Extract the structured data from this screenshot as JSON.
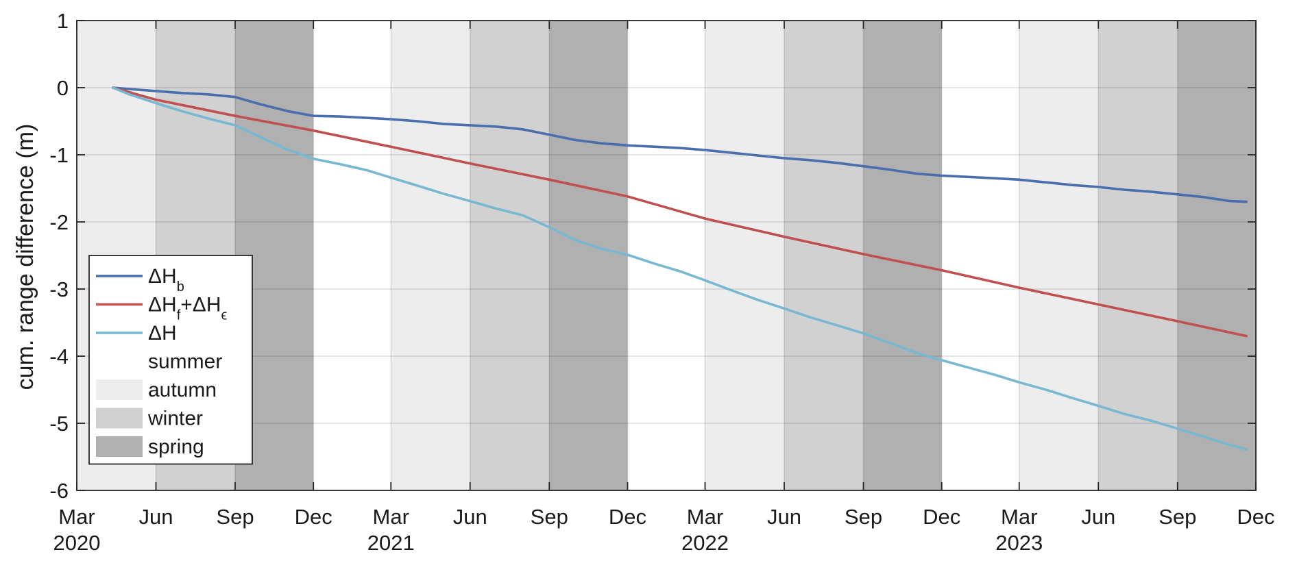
{
  "chart_data": {
    "type": "line",
    "ylabel": "cum. range difference (m)",
    "ylim": [
      -6,
      1
    ],
    "yticks": [
      1,
      0,
      -1,
      -2,
      -3,
      -4,
      -5,
      -6
    ],
    "xlim": [
      "2020-03-01",
      "2023-12-01"
    ],
    "xticks": [
      {
        "date": "2020-03-01",
        "label": "Mar",
        "year": "2020"
      },
      {
        "date": "2020-06-01",
        "label": "Jun",
        "year": ""
      },
      {
        "date": "2020-09-01",
        "label": "Sep",
        "year": ""
      },
      {
        "date": "2020-12-01",
        "label": "Dec",
        "year": ""
      },
      {
        "date": "2021-03-01",
        "label": "Mar",
        "year": "2021"
      },
      {
        "date": "2021-06-01",
        "label": "Jun",
        "year": ""
      },
      {
        "date": "2021-09-01",
        "label": "Sep",
        "year": ""
      },
      {
        "date": "2021-12-01",
        "label": "Dec",
        "year": ""
      },
      {
        "date": "2022-03-01",
        "label": "Mar",
        "year": "2022"
      },
      {
        "date": "2022-06-01",
        "label": "Jun",
        "year": ""
      },
      {
        "date": "2022-09-01",
        "label": "Sep",
        "year": ""
      },
      {
        "date": "2022-12-01",
        "label": "Dec",
        "year": ""
      },
      {
        "date": "2023-03-01",
        "label": "Mar",
        "year": "2023"
      },
      {
        "date": "2023-06-01",
        "label": "Jun",
        "year": ""
      },
      {
        "date": "2023-09-01",
        "label": "Sep",
        "year": ""
      },
      {
        "date": "2023-12-01",
        "label": "Dec",
        "year": ""
      }
    ],
    "grid": true,
    "legend_position": "bottom-left",
    "season_colors": {
      "summer": "#ffffff",
      "autumn": "#ededed",
      "winter": "#d1d1d1",
      "spring": "#b0b0b0"
    },
    "season_bands": [
      {
        "season": "autumn",
        "start": "2020-03-01",
        "end": "2020-06-01"
      },
      {
        "season": "winter",
        "start": "2020-06-01",
        "end": "2020-09-01"
      },
      {
        "season": "spring",
        "start": "2020-09-01",
        "end": "2020-12-01"
      },
      {
        "season": "summer",
        "start": "2020-12-01",
        "end": "2021-03-01"
      },
      {
        "season": "autumn",
        "start": "2021-03-01",
        "end": "2021-06-01"
      },
      {
        "season": "winter",
        "start": "2021-06-01",
        "end": "2021-09-01"
      },
      {
        "season": "spring",
        "start": "2021-09-01",
        "end": "2021-12-01"
      },
      {
        "season": "summer",
        "start": "2021-12-01",
        "end": "2022-03-01"
      },
      {
        "season": "autumn",
        "start": "2022-03-01",
        "end": "2022-06-01"
      },
      {
        "season": "winter",
        "start": "2022-06-01",
        "end": "2022-09-01"
      },
      {
        "season": "spring",
        "start": "2022-09-01",
        "end": "2022-12-01"
      },
      {
        "season": "summer",
        "start": "2022-12-01",
        "end": "2023-03-01"
      },
      {
        "season": "autumn",
        "start": "2023-03-01",
        "end": "2023-06-01"
      },
      {
        "season": "winter",
        "start": "2023-06-01",
        "end": "2023-09-01"
      },
      {
        "season": "spring",
        "start": "2023-09-01",
        "end": "2023-12-01"
      }
    ],
    "series": [
      {
        "name": "ΔHb",
        "name_main": "ΔH",
        "name_sub": "b",
        "color": "#4a6fad",
        "points": [
          [
            "2020-04-12",
            0.0
          ],
          [
            "2020-05-01",
            -0.02
          ],
          [
            "2020-06-01",
            -0.05
          ],
          [
            "2020-07-01",
            -0.08
          ],
          [
            "2020-08-01",
            -0.1
          ],
          [
            "2020-09-01",
            -0.14
          ],
          [
            "2020-10-01",
            -0.25
          ],
          [
            "2020-11-01",
            -0.35
          ],
          [
            "2020-12-01",
            -0.42
          ],
          [
            "2021-01-01",
            -0.43
          ],
          [
            "2021-02-01",
            -0.45
          ],
          [
            "2021-03-01",
            -0.47
          ],
          [
            "2021-04-01",
            -0.5
          ],
          [
            "2021-05-01",
            -0.54
          ],
          [
            "2021-06-01",
            -0.56
          ],
          [
            "2021-07-01",
            -0.58
          ],
          [
            "2021-08-01",
            -0.62
          ],
          [
            "2021-09-01",
            -0.7
          ],
          [
            "2021-10-01",
            -0.78
          ],
          [
            "2021-11-01",
            -0.83
          ],
          [
            "2021-12-01",
            -0.86
          ],
          [
            "2022-01-01",
            -0.88
          ],
          [
            "2022-02-01",
            -0.9
          ],
          [
            "2022-03-01",
            -0.93
          ],
          [
            "2022-04-01",
            -0.97
          ],
          [
            "2022-05-01",
            -1.01
          ],
          [
            "2022-06-01",
            -1.05
          ],
          [
            "2022-07-01",
            -1.08
          ],
          [
            "2022-08-01",
            -1.12
          ],
          [
            "2022-09-01",
            -1.17
          ],
          [
            "2022-10-01",
            -1.22
          ],
          [
            "2022-11-01",
            -1.28
          ],
          [
            "2022-12-01",
            -1.31
          ],
          [
            "2023-01-01",
            -1.33
          ],
          [
            "2023-02-01",
            -1.35
          ],
          [
            "2023-03-01",
            -1.37
          ],
          [
            "2023-04-01",
            -1.41
          ],
          [
            "2023-05-01",
            -1.45
          ],
          [
            "2023-06-01",
            -1.48
          ],
          [
            "2023-07-01",
            -1.52
          ],
          [
            "2023-08-01",
            -1.55
          ],
          [
            "2023-09-01",
            -1.59
          ],
          [
            "2023-10-01",
            -1.63
          ],
          [
            "2023-11-01",
            -1.69
          ],
          [
            "2023-11-20",
            -1.7
          ]
        ]
      },
      {
        "name": "ΔHf+ΔHϵ",
        "name_main": "ΔH",
        "name_sub": "f",
        "name_mid": "+ΔH",
        "name_sub2": "ϵ",
        "color": "#c05050",
        "points": [
          [
            "2020-04-12",
            0.0
          ],
          [
            "2020-06-01",
            -0.18
          ],
          [
            "2020-09-01",
            -0.42
          ],
          [
            "2020-12-01",
            -0.64
          ],
          [
            "2021-03-01",
            -0.88
          ],
          [
            "2021-06-01",
            -1.13
          ],
          [
            "2021-09-01",
            -1.37
          ],
          [
            "2021-12-01",
            -1.62
          ],
          [
            "2022-03-01",
            -1.95
          ],
          [
            "2022-06-01",
            -2.22
          ],
          [
            "2022-09-01",
            -2.48
          ],
          [
            "2022-12-01",
            -2.72
          ],
          [
            "2023-03-01",
            -2.98
          ],
          [
            "2023-06-01",
            -3.23
          ],
          [
            "2023-09-01",
            -3.48
          ],
          [
            "2023-11-20",
            -3.7
          ]
        ]
      },
      {
        "name": "ΔH",
        "name_main": "ΔH",
        "color": "#78b8d2",
        "points": [
          [
            "2020-04-12",
            0.0
          ],
          [
            "2020-05-01",
            -0.1
          ],
          [
            "2020-06-01",
            -0.23
          ],
          [
            "2020-07-01",
            -0.35
          ],
          [
            "2020-08-01",
            -0.46
          ],
          [
            "2020-09-01",
            -0.56
          ],
          [
            "2020-10-01",
            -0.74
          ],
          [
            "2020-11-01",
            -0.92
          ],
          [
            "2020-12-01",
            -1.06
          ],
          [
            "2021-01-01",
            -1.14
          ],
          [
            "2021-02-01",
            -1.23
          ],
          [
            "2021-03-01",
            -1.34
          ],
          [
            "2021-04-01",
            -1.46
          ],
          [
            "2021-05-01",
            -1.58
          ],
          [
            "2021-06-01",
            -1.69
          ],
          [
            "2021-07-01",
            -1.8
          ],
          [
            "2021-08-01",
            -1.9
          ],
          [
            "2021-09-01",
            -2.08
          ],
          [
            "2021-10-01",
            -2.27
          ],
          [
            "2021-11-01",
            -2.4
          ],
          [
            "2021-12-01",
            -2.49
          ],
          [
            "2022-01-01",
            -2.62
          ],
          [
            "2022-02-01",
            -2.74
          ],
          [
            "2022-03-01",
            -2.87
          ],
          [
            "2022-04-01",
            -3.02
          ],
          [
            "2022-05-01",
            -3.16
          ],
          [
            "2022-06-01",
            -3.29
          ],
          [
            "2022-07-01",
            -3.42
          ],
          [
            "2022-08-01",
            -3.54
          ],
          [
            "2022-09-01",
            -3.66
          ],
          [
            "2022-10-01",
            -3.8
          ],
          [
            "2022-11-01",
            -3.95
          ],
          [
            "2022-12-01",
            -4.06
          ],
          [
            "2023-01-01",
            -4.17
          ],
          [
            "2023-02-01",
            -4.28
          ],
          [
            "2023-03-01",
            -4.39
          ],
          [
            "2023-04-01",
            -4.5
          ],
          [
            "2023-05-01",
            -4.62
          ],
          [
            "2023-06-01",
            -4.74
          ],
          [
            "2023-07-01",
            -4.86
          ],
          [
            "2023-08-01",
            -4.96
          ],
          [
            "2023-09-01",
            -5.08
          ],
          [
            "2023-10-01",
            -5.2
          ],
          [
            "2023-11-01",
            -5.32
          ],
          [
            "2023-11-20",
            -5.39
          ]
        ]
      }
    ],
    "legend": [
      {
        "kind": "line",
        "series": 0
      },
      {
        "kind": "line",
        "series": 1
      },
      {
        "kind": "line",
        "series": 2
      },
      {
        "kind": "patch",
        "season": "summer",
        "label": "summer"
      },
      {
        "kind": "patch",
        "season": "autumn",
        "label": "autumn"
      },
      {
        "kind": "patch",
        "season": "winter",
        "label": "winter"
      },
      {
        "kind": "patch",
        "season": "spring",
        "label": "spring"
      }
    ]
  }
}
